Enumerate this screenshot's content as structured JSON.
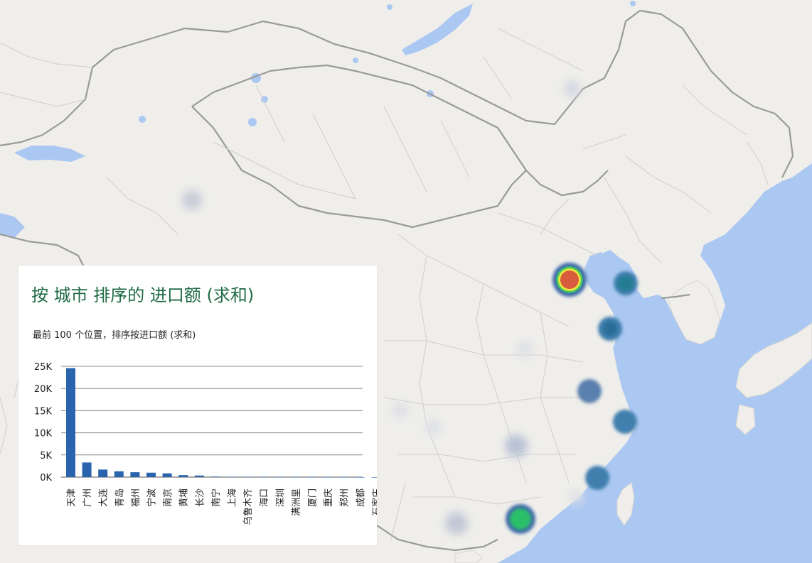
{
  "panel": {
    "title": "按 城市 排序的 进口额 (求和)",
    "subtitle": "最前 100 个位置，排序按进口额 (求和)"
  },
  "colors": {
    "land": "#efeeeb",
    "water": "#abc8f2",
    "border": "#8a8a8a",
    "bar": "#2a64ad",
    "title": "#1f6b45"
  },
  "chart_data": {
    "type": "bar",
    "categories": [
      "天津",
      "广州",
      "大连",
      "青岛",
      "福州",
      "宁波",
      "南京",
      "黄埔",
      "长沙",
      "南宁",
      "上海",
      "乌鲁木齐",
      "海口",
      "深圳",
      "满洲里",
      "厦门",
      "重庆",
      "郑州",
      "成都",
      "石家庄"
    ],
    "values": [
      24600,
      3300,
      1700,
      1300,
      1100,
      1000,
      850,
      450,
      350,
      120,
      80,
      60,
      40,
      30,
      20,
      15,
      10,
      8,
      5,
      3
    ],
    "ylim": [
      0,
      25000
    ],
    "yticks": [
      "0K",
      "5K",
      "10K",
      "15K",
      "20K",
      "25K"
    ],
    "grid": true
  }
}
